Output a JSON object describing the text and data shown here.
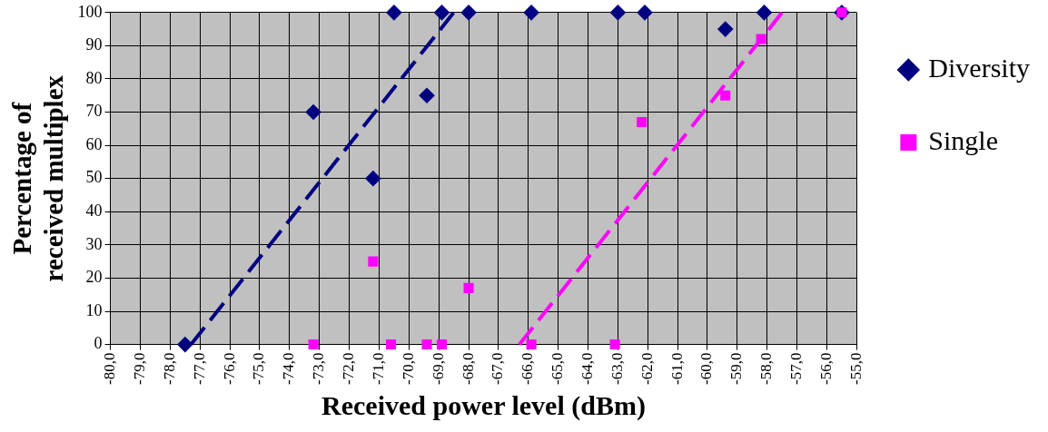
{
  "chart_data": {
    "type": "scatter",
    "xlabel": "Received power level (dBm)",
    "ylabel": "Percentage of received multiplex",
    "xlim": [
      -80,
      -55
    ],
    "ylim": [
      0,
      100
    ],
    "xticks": [
      {
        "value": -80,
        "label": "-80,0"
      },
      {
        "value": -79,
        "label": "-79,0"
      },
      {
        "value": -78,
        "label": "-78,0"
      },
      {
        "value": -77,
        "label": "-77,0"
      },
      {
        "value": -76,
        "label": "-76,0"
      },
      {
        "value": -75,
        "label": "-75,0"
      },
      {
        "value": -74,
        "label": "-74,0"
      },
      {
        "value": -73,
        "label": "-73,0"
      },
      {
        "value": -72,
        "label": "-72,0"
      },
      {
        "value": -71,
        "label": "-71,0"
      },
      {
        "value": -70,
        "label": "-70,0"
      },
      {
        "value": -69,
        "label": "-69,0"
      },
      {
        "value": -68,
        "label": "-68,0"
      },
      {
        "value": -67,
        "label": "-67,0"
      },
      {
        "value": -66,
        "label": "-66,0"
      },
      {
        "value": -65,
        "label": "-65,0"
      },
      {
        "value": -64,
        "label": "-64,0"
      },
      {
        "value": -63,
        "label": "-63,0"
      },
      {
        "value": -62,
        "label": "-62,0"
      },
      {
        "value": -61,
        "label": "-61,0"
      },
      {
        "value": -60,
        "label": "-60,0"
      },
      {
        "value": -59,
        "label": "-59,0"
      },
      {
        "value": -58,
        "label": "-58,0"
      },
      {
        "value": -57,
        "label": "-57,0"
      },
      {
        "value": -56,
        "label": "-56,0"
      },
      {
        "value": -55,
        "label": "-55,0"
      }
    ],
    "yticks": [
      0,
      10,
      20,
      30,
      40,
      50,
      60,
      70,
      80,
      90,
      100
    ],
    "grid": true,
    "legend": "right",
    "series": [
      {
        "name": "Diversity",
        "color": "#000080",
        "marker": "diamond",
        "x": [
          -77.5,
          -73.2,
          -71.2,
          -70.5,
          -69.4,
          -68.9,
          -68.0,
          -65.9,
          -63.0,
          -62.1,
          -59.4,
          -58.1,
          -55.5
        ],
        "values": [
          0,
          70,
          50,
          100,
          75,
          100,
          100,
          100,
          100,
          100,
          95,
          100,
          100
        ]
      },
      {
        "name": "Single",
        "color": "#ff00ff",
        "marker": "square",
        "x": [
          -73.2,
          -71.2,
          -70.6,
          -69.4,
          -68.9,
          -68.0,
          -65.9,
          -63.1,
          -62.2,
          -59.4,
          -58.2,
          -55.5
        ],
        "values": [
          0,
          25,
          0,
          0,
          0,
          17,
          0,
          0,
          67,
          75,
          92,
          100
        ]
      },
      {
        "type": "line",
        "color": "#000080",
        "line_style": "dashed",
        "marker": "none",
        "x": [
          -77.3,
          -68.5
        ],
        "values": [
          0,
          100
        ]
      },
      {
        "type": "line",
        "color": "#ff00ff",
        "line_style": "dashed",
        "marker": "none",
        "x": [
          -66.3,
          -57.5
        ],
        "values": [
          0,
          100
        ]
      }
    ]
  }
}
